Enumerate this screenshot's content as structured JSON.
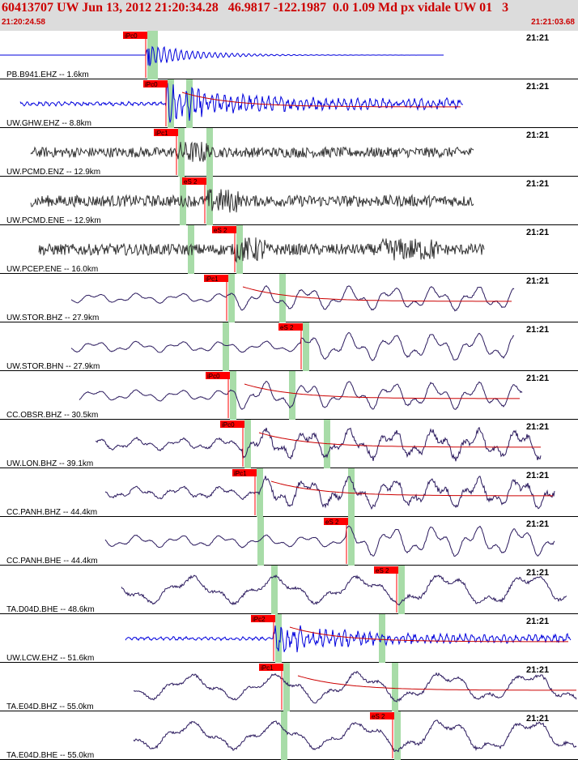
{
  "header": {
    "title": "60413707 UW Jun 13, 2012 21:20:34.28   46.9817 -122.1987  0.0 1.09 Md px vidale UW 01   3",
    "start_time": "21:20:24.58",
    "end_time": "21:21:03.68"
  },
  "colors": {
    "blue_trace": "#0000dd",
    "dark_trace": "#333333",
    "navy_trace": "#2b1a5e",
    "pick": "#ff0000",
    "window": "#a8dca8",
    "coda": "#cc0000"
  },
  "traces": [
    {
      "label": "PB.B941.EHZ -- 1.6km",
      "time": "21:21",
      "color": "blue_trace",
      "amp": 16,
      "start": 0,
      "end": 548,
      "onset": 180,
      "style": "flat",
      "pick": "iPc0",
      "pickx": 180,
      "window": 187,
      "hasP": true
    },
    {
      "label": "UW.GHW.EHZ -- 8.8km",
      "time": "21:21",
      "color": "blue_trace",
      "amp": 22,
      "start": 25,
      "end": 572,
      "onset": 205,
      "style": "burst",
      "pick": "iPc0",
      "pickx": 205,
      "window": 230,
      "coda": true
    },
    {
      "label": "UW.PCMD.ENZ -- 12.9km",
      "time": "21:21",
      "color": "dark_trace",
      "amp": 18,
      "start": 38,
      "end": 585,
      "onset": 218,
      "style": "noisy",
      "pick": "iPc1",
      "pickx": 218,
      "window": 255
    },
    {
      "label": "UW.PCMD.ENE -- 12.9km",
      "time": "21:21",
      "color": "dark_trace",
      "amp": 20,
      "start": 38,
      "end": 585,
      "onset": 255,
      "style": "noisy",
      "pick": "eS 2",
      "pickx": 253,
      "window": 222
    },
    {
      "label": "UW.PCEP.ENE -- 16.0km",
      "time": "21:21",
      "color": "dark_trace",
      "amp": 20,
      "start": 48,
      "end": 598,
      "onset": 290,
      "style": "noisy2",
      "pick": "eS 2",
      "pickx": 290,
      "window": 232
    },
    {
      "label": "UW.STOR.BHZ -- 27.9km",
      "time": "21:21",
      "color": "navy_trace",
      "amp": 16,
      "start": 88,
      "end": 635,
      "onset": 280,
      "style": "wave",
      "pick": "iPc1",
      "pickx": 280,
      "window": 345,
      "coda": true
    },
    {
      "label": "UW.STOR.BHN -- 27.9km",
      "time": "21:21",
      "color": "navy_trace",
      "amp": 18,
      "start": 88,
      "end": 635,
      "onset": 372,
      "style": "wave",
      "pick": "eS 2",
      "pickx": 372,
      "window": 275
    },
    {
      "label": "CC.OBSR.BHZ -- 30.5km",
      "time": "21:21",
      "color": "navy_trace",
      "amp": 18,
      "start": 98,
      "end": 645,
      "onset": 282,
      "style": "wave",
      "pick": "iPc0",
      "pickx": 282,
      "window": 357,
      "coda": true
    },
    {
      "label": "UW.LON.BHZ -- 39.1km",
      "time": "21:21",
      "color": "navy_trace",
      "amp": 20,
      "start": 118,
      "end": 668,
      "onset": 300,
      "style": "wave2",
      "pick": "iPc0",
      "pickx": 300,
      "window": 400,
      "coda": true
    },
    {
      "label": "CC.PANH.BHZ -- 44.4km",
      "time": "21:21",
      "color": "navy_trace",
      "amp": 20,
      "start": 130,
      "end": 685,
      "onset": 315,
      "style": "wave2",
      "pick": "iPc1",
      "pickx": 315,
      "window": 430,
      "coda": true
    },
    {
      "label": "CC.PANH.BHE -- 44.4km",
      "time": "21:21",
      "color": "navy_trace",
      "amp": 20,
      "start": 130,
      "end": 685,
      "onset": 428,
      "style": "wave",
      "pick": "eS 2",
      "pickx": 428,
      "window": 318
    },
    {
      "label": "TA.D04D.BHE -- 48.6km",
      "time": "21:21",
      "color": "navy_trace",
      "amp": 22,
      "start": 150,
      "end": 700,
      "onset": 490,
      "style": "long",
      "pick": "eS 2",
      "pickx": 490,
      "window": 335
    },
    {
      "label": "UW.LCW.EHZ -- 51.6km",
      "time": "21:21",
      "color": "blue_trace",
      "amp": 18,
      "start": 155,
      "end": 705,
      "onset": 338,
      "style": "burst2",
      "pick": "iPc2",
      "pickx": 338,
      "window": 468,
      "coda": true
    },
    {
      "label": "TA.E04D.BHZ -- 55.0km",
      "time": "21:21",
      "color": "navy_trace",
      "amp": 20,
      "start": 165,
      "end": 712,
      "onset": 348,
      "style": "long",
      "pick": "iPc1",
      "pickx": 348,
      "window": 484,
      "coda": true
    },
    {
      "label": "TA.E04D.BHE -- 55.0km",
      "time": "21:21",
      "color": "navy_trace",
      "amp": 22,
      "start": 165,
      "end": 712,
      "onset": 485,
      "style": "long",
      "pick": "eS 2",
      "pickx": 485,
      "window": 347
    }
  ]
}
